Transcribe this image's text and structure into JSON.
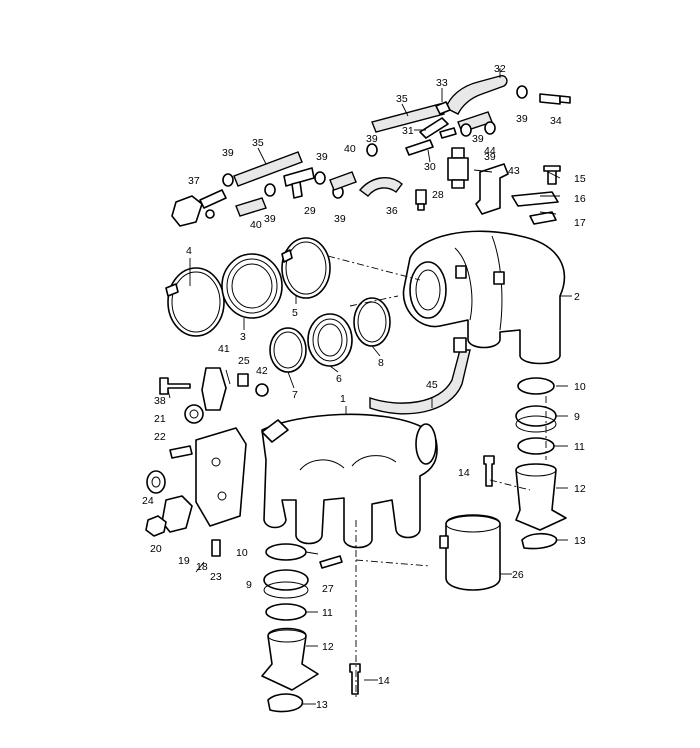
{
  "callouts": [
    {
      "id": "c32",
      "text": "32"
    },
    {
      "id": "c33",
      "text": "33"
    },
    {
      "id": "c35a",
      "text": "35"
    },
    {
      "id": "c35b",
      "text": "35"
    },
    {
      "id": "c39a",
      "text": "39"
    },
    {
      "id": "c39b",
      "text": "39"
    },
    {
      "id": "c39c",
      "text": "39"
    },
    {
      "id": "c39d",
      "text": "39"
    },
    {
      "id": "c39e",
      "text": "39"
    },
    {
      "id": "c39f",
      "text": "39"
    },
    {
      "id": "c39g",
      "text": "39"
    },
    {
      "id": "c39h",
      "text": "39"
    },
    {
      "id": "c34",
      "text": "34"
    },
    {
      "id": "c31",
      "text": "31"
    },
    {
      "id": "c44",
      "text": "44"
    },
    {
      "id": "c43",
      "text": "43"
    },
    {
      "id": "c40a",
      "text": "40"
    },
    {
      "id": "c40b",
      "text": "40"
    },
    {
      "id": "c30",
      "text": "30"
    },
    {
      "id": "c37",
      "text": "37"
    },
    {
      "id": "c29",
      "text": "29"
    },
    {
      "id": "c36",
      "text": "36"
    },
    {
      "id": "c28",
      "text": "28"
    },
    {
      "id": "c15",
      "text": "15"
    },
    {
      "id": "c16",
      "text": "16"
    },
    {
      "id": "c17",
      "text": "17"
    },
    {
      "id": "c4",
      "text": "4"
    },
    {
      "id": "c3",
      "text": "3"
    },
    {
      "id": "c5",
      "text": "5"
    },
    {
      "id": "c2",
      "text": "2"
    },
    {
      "id": "c8",
      "text": "8"
    },
    {
      "id": "c6",
      "text": "6"
    },
    {
      "id": "c7",
      "text": "7"
    },
    {
      "id": "c41",
      "text": "41"
    },
    {
      "id": "c25",
      "text": "25"
    },
    {
      "id": "c42",
      "text": "42"
    },
    {
      "id": "c38",
      "text": "38"
    },
    {
      "id": "c1",
      "text": "1"
    },
    {
      "id": "c45",
      "text": "45"
    },
    {
      "id": "c10a",
      "text": "10"
    },
    {
      "id": "c9a",
      "text": "9"
    },
    {
      "id": "c11a",
      "text": "11"
    },
    {
      "id": "c21",
      "text": "21"
    },
    {
      "id": "c22",
      "text": "22"
    },
    {
      "id": "c14a",
      "text": "14"
    },
    {
      "id": "c12a",
      "text": "12"
    },
    {
      "id": "c24",
      "text": "24"
    },
    {
      "id": "c13a",
      "text": "13"
    },
    {
      "id": "c20",
      "text": "20"
    },
    {
      "id": "c19",
      "text": "19"
    },
    {
      "id": "c18",
      "text": "18"
    },
    {
      "id": "c23",
      "text": "23"
    },
    {
      "id": "c10b",
      "text": "10"
    },
    {
      "id": "c27",
      "text": "27"
    },
    {
      "id": "c26",
      "text": "26"
    },
    {
      "id": "c9b",
      "text": "9"
    },
    {
      "id": "c11b",
      "text": "11"
    },
    {
      "id": "c12b",
      "text": "12"
    },
    {
      "id": "c14b",
      "text": "14"
    },
    {
      "id": "c13b",
      "text": "13"
    }
  ]
}
